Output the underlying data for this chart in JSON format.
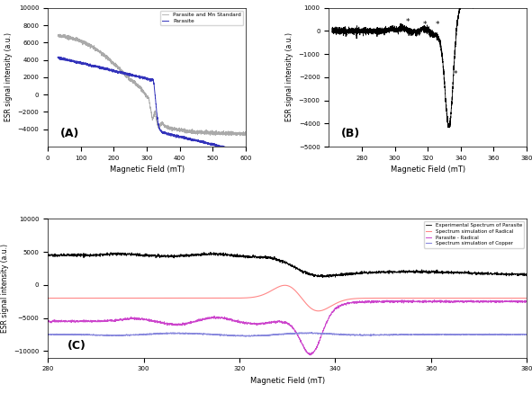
{
  "panel_A": {
    "xlim": [
      0,
      600
    ],
    "ylim": [
      -6000,
      10000
    ],
    "xticks": [
      0,
      100,
      200,
      300,
      400,
      500,
      600
    ],
    "yticks": [
      -4000,
      -2000,
      0,
      2000,
      4000,
      6000,
      8000,
      10000
    ],
    "xlabel": "Magnetic Field (mT)",
    "ylabel": "ESR signal intensity (a.u.)",
    "label": "(A)",
    "legend": [
      "Parasite and Mn Standard",
      "Parasite"
    ],
    "colors": [
      "#aaaaaa",
      "#3333bb"
    ]
  },
  "panel_B": {
    "xlim": [
      260,
      380
    ],
    "ylim": [
      -5000,
      1000
    ],
    "xticks": [
      280,
      300,
      320,
      340,
      360,
      380
    ],
    "yticks": [
      -5000,
      -4000,
      -3000,
      -2000,
      -1000,
      0,
      1000
    ],
    "xlabel": "Magnetic Field (mT)",
    "ylabel": "ESR signal intensity (a.u.)",
    "label": "(B)",
    "asterisk_positions": [
      [
        308,
        200
      ],
      [
        318,
        100
      ],
      [
        326,
        100
      ],
      [
        337,
        -2050
      ]
    ]
  },
  "panel_C": {
    "xlim": [
      280,
      380
    ],
    "ylim": [
      -11000,
      10000
    ],
    "xticks": [
      280,
      300,
      320,
      340,
      360,
      380
    ],
    "yticks": [
      -10000,
      -5000,
      0,
      5000,
      10000
    ],
    "xlabel": "Magnetic Field (mT)",
    "ylabel": "ESR signal intensity (a.u.)",
    "label": "(C)",
    "legend": [
      "Experimental Spectrum of Parasite",
      "Spectrum simulation of Radical",
      "Parasite - Radical",
      "Spectrum simulation of Copper"
    ],
    "colors": [
      "#000000",
      "#ff8888",
      "#cc44cc",
      "#8888dd"
    ]
  },
  "figsize": [
    5.91,
    4.37
  ],
  "dpi": 100
}
